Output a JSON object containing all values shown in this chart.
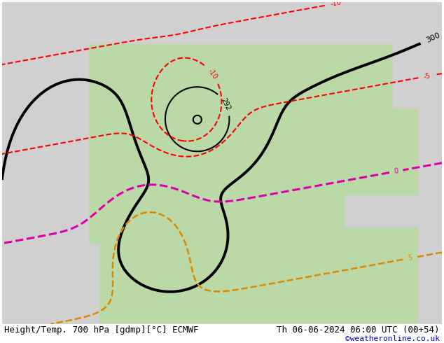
{
  "title_left": "Height/Temp. 700 hPa [gdmp][°C] ECMWF",
  "title_right": "Th 06-06-2024 06:00 UTC (00+54)",
  "watermark": "©weatheronline.co.uk",
  "title_fontsize": 9,
  "watermark_fontsize": 8
}
